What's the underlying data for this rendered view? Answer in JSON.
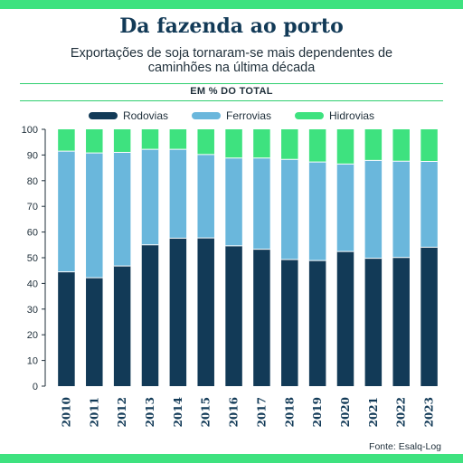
{
  "header": {
    "title": "Da fazenda ao porto",
    "subtitle": "Exportações de soja tornaram-se mais dependentes de caminhões na última década",
    "unit_label": "EM % DO TOTAL"
  },
  "footer": {
    "source": "Fonte: Esalq-Log"
  },
  "colors": {
    "accent": "#3ee27f",
    "rodovias": "#123a57",
    "ferrovias": "#6ab7dc",
    "hidrovias": "#3ee27f"
  },
  "chart_data": {
    "type": "bar",
    "stacked": true,
    "categories": [
      "2010",
      "2011",
      "2012",
      "2013",
      "2014",
      "2015",
      "2016",
      "2017",
      "2018",
      "2019",
      "2020",
      "2021",
      "2022",
      "2023"
    ],
    "series": [
      {
        "name": "Rodovias",
        "color": "#123a57",
        "values": [
          44.5,
          42.2,
          46.8,
          55.0,
          57.6,
          57.7,
          54.6,
          53.3,
          49.3,
          48.9,
          52.4,
          49.8,
          50.1,
          54.1
        ]
      },
      {
        "name": "Ferrovias",
        "color": "#6ab7dc",
        "values": [
          47.0,
          48.6,
          44.2,
          37.2,
          34.6,
          32.5,
          34.2,
          35.5,
          39.0,
          38.4,
          34.1,
          38.1,
          37.5,
          33.4
        ]
      },
      {
        "name": "Hidrovias",
        "color": "#3ee27f",
        "values": [
          8.5,
          9.2,
          9.0,
          7.8,
          7.8,
          9.8,
          11.2,
          11.2,
          11.7,
          12.7,
          13.5,
          12.1,
          12.4,
          12.5
        ]
      }
    ],
    "ylim": [
      0,
      100
    ],
    "yticks": [
      0,
      10,
      20,
      30,
      40,
      50,
      60,
      70,
      80,
      90,
      100
    ],
    "grid": false,
    "legend_position": "top-center"
  }
}
